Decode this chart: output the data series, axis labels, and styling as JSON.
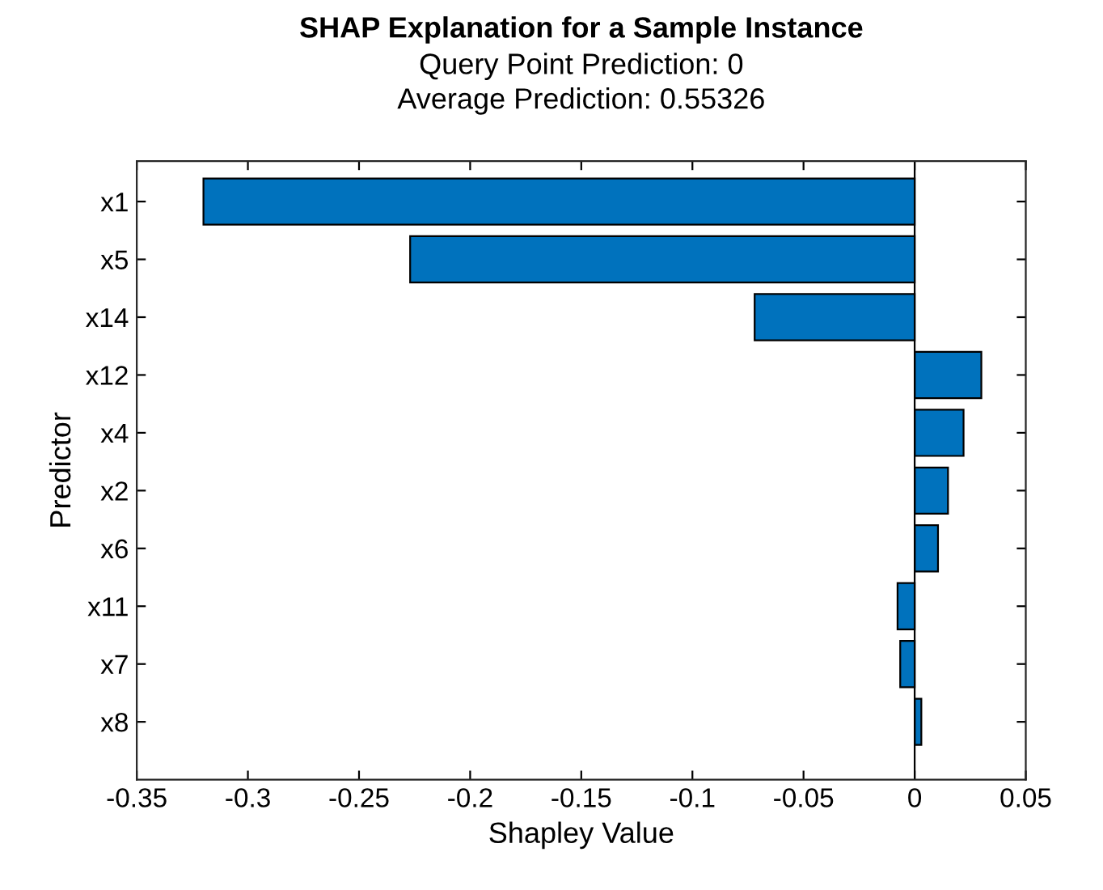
{
  "chart_data": {
    "type": "bar",
    "orientation": "horizontal",
    "title": "SHAP Explanation for a Sample Instance",
    "subtitle": "Query Point Prediction: 0\nAverage Prediction: 0.55326",
    "xlabel": "Shapley Value",
    "ylabel": "Predictor",
    "categories": [
      "x1",
      "x5",
      "x14",
      "x12",
      "x4",
      "x2",
      "x6",
      "x11",
      "x7",
      "x8"
    ],
    "values": [
      -0.32,
      -0.227,
      -0.072,
      0.03,
      0.022,
      0.015,
      0.0105,
      -0.0077,
      -0.0065,
      0.003
    ],
    "color": "#0072bd",
    "xlim": [
      -0.35,
      0.05
    ],
    "xticks": [
      -0.35,
      -0.3,
      -0.25,
      -0.2,
      -0.15,
      -0.1,
      -0.05,
      0,
      0.05
    ],
    "ref_lines": [
      {
        "axis": "x",
        "value": 0,
        "color": "#000000"
      }
    ],
    "grid": false,
    "legend": false
  }
}
